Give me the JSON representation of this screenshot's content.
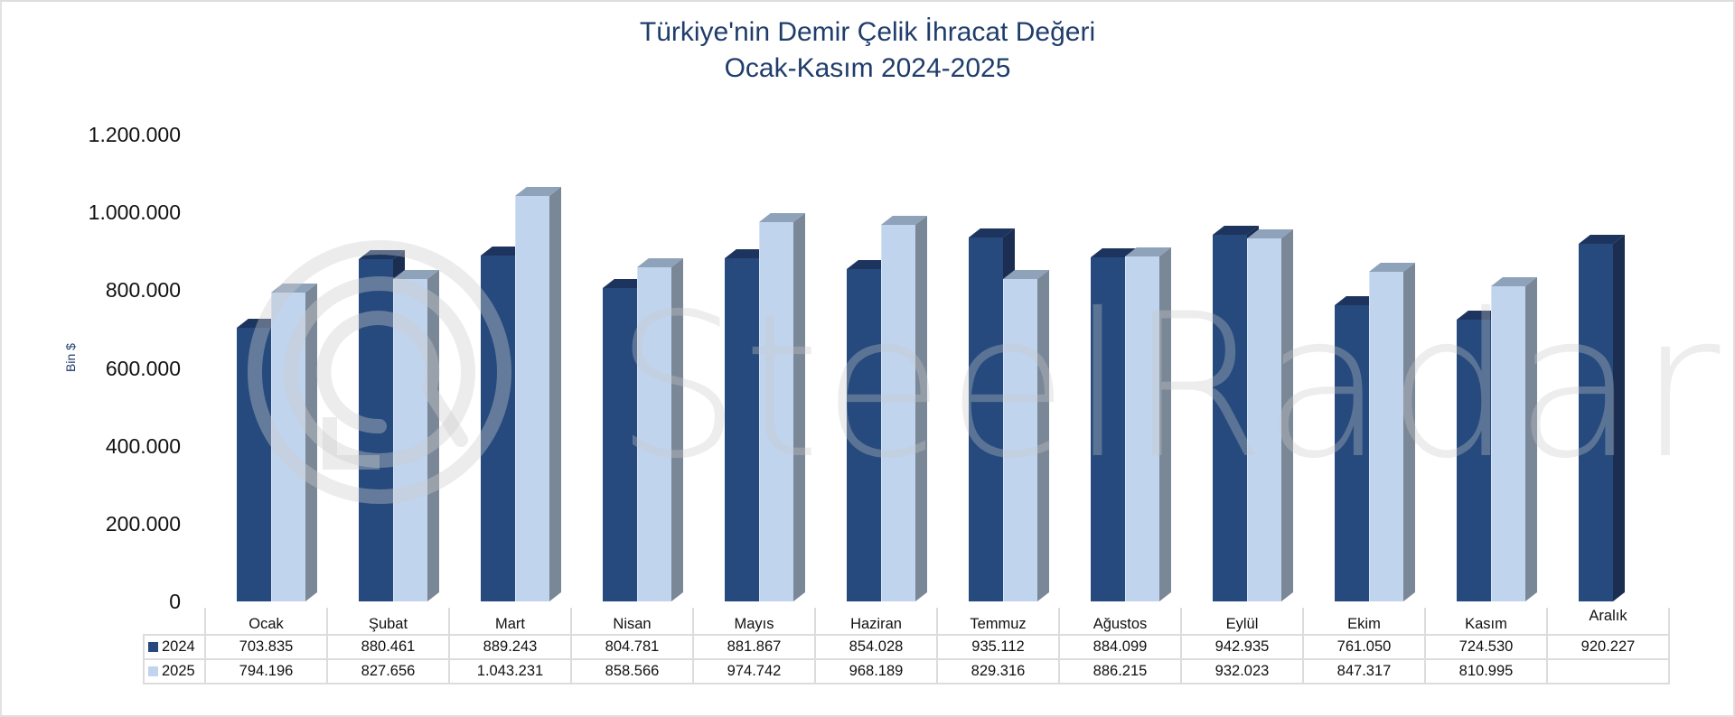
{
  "title": {
    "line1": "Türkiye'nin Demir Çelik İhracat Değeri",
    "line2": "Ocak-Kasım 2024-2025"
  },
  "watermark": "SteelRadar",
  "y_axis": {
    "label": "Bin $",
    "ticks": [
      "1.200.000",
      "1.000.000",
      "800.000",
      "600.000",
      "400.000",
      "200.000",
      "0"
    ]
  },
  "legend": [
    {
      "name": "2024",
      "color": "#264a7d"
    },
    {
      "name": "2025",
      "color": "#c0d4ee"
    }
  ],
  "table": {
    "months": [
      "Ocak",
      "Şubat",
      "Mart",
      "Nisan",
      "Mayıs",
      "Haziran",
      "Temmuz",
      "Ağustos",
      "Eylül",
      "Ekim",
      "Kasım",
      "Aralık"
    ],
    "rows": [
      {
        "label": "2024",
        "values": [
          "703.835",
          "880.461",
          "889.243",
          "804.781",
          "881.867",
          "854.028",
          "935.112",
          "884.099",
          "942.935",
          "761.050",
          "724.530",
          "920.227"
        ]
      },
      {
        "label": "2025",
        "values": [
          "794.196",
          "827.656",
          "1.043.231",
          "858.566",
          "974.742",
          "968.189",
          "829.316",
          "886.215",
          "932.023",
          "847.317",
          "810.995",
          ""
        ]
      }
    ]
  },
  "chart_data": {
    "type": "bar",
    "title": "Türkiye'nin Demir Çelik İhracat Değeri Ocak-Kasım 2024-2025",
    "xlabel": "",
    "ylabel": "Bin $",
    "ylim": [
      0,
      1200000
    ],
    "yticks": [
      0,
      200000,
      400000,
      600000,
      800000,
      1000000,
      1200000
    ],
    "grid": false,
    "legend_position": "data table (bottom)",
    "categories": [
      "Ocak",
      "Şubat",
      "Mart",
      "Nisan",
      "Mayıs",
      "Haziran",
      "Temmuz",
      "Ağustos",
      "Eylül",
      "Ekim",
      "Kasım",
      "Aralık"
    ],
    "series": [
      {
        "name": "2024",
        "color": "#264a7d",
        "values": [
          703835,
          880461,
          889243,
          804781,
          881867,
          854028,
          935112,
          884099,
          942935,
          761050,
          724530,
          920227
        ]
      },
      {
        "name": "2025",
        "color": "#c0d4ee",
        "values": [
          794196,
          827656,
          1043231,
          858566,
          974742,
          968189,
          829316,
          886215,
          932023,
          847317,
          810995,
          null
        ]
      }
    ]
  }
}
